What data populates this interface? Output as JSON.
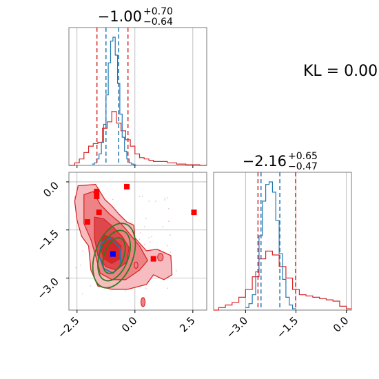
{
  "colors": {
    "red": "#d62728",
    "blue": "#1f77b4",
    "green": "#2a7d1f",
    "marker_red": "#ff0000",
    "marker_blue": "#0000ff",
    "grid": "#b0b0b0",
    "frame": "#000000"
  },
  "kl_text": "KL = 0.00",
  "chart_data": [
    {
      "type": "histogram",
      "panel": "top-left marginal",
      "title": {
        "main": "−1.00",
        "sup": "+0.70",
        "sub": "−0.64"
      },
      "xlim": [
        -2.85,
        3.1
      ],
      "series": [
        {
          "name": "",
          "color": "#d62728",
          "style": "step",
          "x": [
            -2.85,
            -2.6,
            -2.4,
            -2.2,
            -2.0,
            -1.8,
            -1.6,
            -1.4,
            -1.2,
            -1.0,
            -0.8,
            -0.6,
            -0.4,
            -0.2,
            0.0,
            0.2,
            0.4,
            0.6,
            0.8,
            1.0,
            1.2,
            1.4,
            1.6,
            1.8,
            2.0,
            2.2,
            2.4,
            2.6,
            2.8,
            3.1
          ],
          "counts": [
            0.0,
            0.02,
            0.05,
            0.1,
            0.15,
            0.17,
            0.18,
            0.29,
            0.34,
            0.42,
            0.33,
            0.27,
            0.2,
            0.15,
            0.09,
            0.06,
            0.05,
            0.04,
            0.03,
            0.03,
            0.03,
            0.02,
            0.02,
            0.01,
            0.01,
            0.005,
            0.005,
            0.005,
            0.0
          ]
        },
        {
          "name": "",
          "color": "#1f77b4",
          "style": "step",
          "x": [
            -1.85,
            -1.75,
            -1.65,
            -1.55,
            -1.45,
            -1.35,
            -1.25,
            -1.15,
            -1.05,
            -0.95,
            -0.85,
            -0.75,
            -0.65,
            -0.55,
            -0.45,
            -0.35,
            -0.25,
            -0.15,
            -0.05,
            0.05
          ],
          "counts": [
            0.01,
            0.02,
            0.05,
            0.09,
            0.18,
            0.32,
            0.55,
            0.8,
            0.97,
            1.0,
            0.86,
            0.64,
            0.4,
            0.22,
            0.11,
            0.05,
            0.02,
            0.01,
            0.005
          ]
        }
      ],
      "vlines": [
        {
          "x": -1.64,
          "color": "#d62728",
          "style": "dashed"
        },
        {
          "x": -0.3,
          "color": "#d62728",
          "style": "dashed"
        },
        {
          "x": -1.25,
          "color": "#1f77b4",
          "style": "dashed"
        },
        {
          "x": -0.7,
          "color": "#1f77b4",
          "style": "dashed"
        }
      ],
      "grid": true
    },
    {
      "type": "contour",
      "panel": "bottom-left joint",
      "xlim": [
        -2.85,
        3.1
      ],
      "ylim": [
        -4.0,
        0.3
      ],
      "xticks": [
        "−2.5",
        "0.0",
        "2.5"
      ],
      "yticks": [
        "0.0",
        "−1.5",
        "−3.0"
      ],
      "xtick_values": [
        -2.5,
        0.0,
        2.5
      ],
      "ytick_values": [
        0.0,
        -1.5,
        -3.0
      ],
      "red_contour_levels": [
        [
          [
            -2.45,
            -0.12
          ],
          [
            -1.7,
            -0.08
          ],
          [
            -1.3,
            -0.55
          ],
          [
            -1.0,
            -0.75
          ],
          [
            -0.7,
            -1.0
          ],
          [
            -0.35,
            -1.25
          ],
          [
            -0.05,
            -1.35
          ],
          [
            0.0,
            -1.75
          ],
          [
            0.5,
            -2.15
          ],
          [
            0.95,
            -2.1
          ],
          [
            1.55,
            -2.3
          ],
          [
            1.6,
            -2.9
          ],
          [
            1.25,
            -3.05
          ],
          [
            0.8,
            -2.9
          ],
          [
            0.5,
            -3.2
          ],
          [
            -0.3,
            -3.35
          ],
          [
            -1.0,
            -3.35
          ],
          [
            -1.6,
            -3.25
          ],
          [
            -1.9,
            -2.75
          ],
          [
            -2.0,
            -2.0
          ],
          [
            -2.3,
            -1.7
          ],
          [
            -2.5,
            -1.2
          ],
          [
            -2.6,
            -0.6
          ]
        ],
        [
          [
            -2.2,
            -0.4
          ],
          [
            -1.8,
            -0.3
          ],
          [
            -1.5,
            -0.7
          ],
          [
            -1.1,
            -1.0
          ],
          [
            -0.6,
            -1.3
          ],
          [
            -0.25,
            -1.6
          ],
          [
            0.2,
            -2.0
          ],
          [
            0.55,
            -2.45
          ],
          [
            0.2,
            -2.75
          ],
          [
            -0.4,
            -3.05
          ],
          [
            -1.0,
            -3.05
          ],
          [
            -1.5,
            -2.85
          ],
          [
            -1.7,
            -2.3
          ],
          [
            -1.9,
            -1.8
          ],
          [
            -2.2,
            -1.3
          ]
        ],
        [
          [
            -1.75,
            -1.1
          ],
          [
            -1.35,
            -1.15
          ],
          [
            -0.95,
            -1.4
          ],
          [
            -0.55,
            -1.7
          ],
          [
            -0.25,
            -2.05
          ],
          [
            -0.35,
            -2.5
          ],
          [
            -0.8,
            -2.75
          ],
          [
            -1.25,
            -2.65
          ],
          [
            -1.6,
            -2.3
          ],
          [
            -1.75,
            -1.75
          ]
        ],
        [
          [
            -1.35,
            -1.65
          ],
          [
            -0.95,
            -1.75
          ],
          [
            -0.6,
            -2.0
          ],
          [
            -0.65,
            -2.4
          ],
          [
            -1.0,
            -2.55
          ],
          [
            -1.35,
            -2.4
          ],
          [
            -1.5,
            -2.0
          ]
        ]
      ],
      "red_contour_fills": [
        "#f6bcbf",
        "#ee8387",
        "#e0474d",
        "#d62728"
      ],
      "blue_contour": [
        [
          -1.45,
          -1.9
        ],
        [
          -1.05,
          -1.75
        ],
        [
          -0.65,
          -2.05
        ],
        [
          -0.6,
          -2.6
        ],
        [
          -0.95,
          -2.85
        ],
        [
          -1.35,
          -2.7
        ],
        [
          -1.55,
          -2.3
        ]
      ],
      "green_ellipses": [
        {
          "cx": -0.9,
          "cy": -2.3,
          "rx": 0.42,
          "ry": 0.58,
          "angle_deg": 20
        },
        {
          "cx": -0.9,
          "cy": -2.3,
          "rx": 0.62,
          "ry": 0.82,
          "angle_deg": 20
        },
        {
          "cx": -0.9,
          "cy": -2.3,
          "rx": 0.82,
          "ry": 1.05,
          "angle_deg": 20
        }
      ],
      "red_markers": [
        {
          "x": -1.65,
          "y": -0.3
        },
        {
          "x": -1.65,
          "y": -0.45
        },
        {
          "x": -0.35,
          "y": -0.15
        },
        {
          "x": -1.55,
          "y": -0.95
        },
        {
          "x": -2.05,
          "y": -1.25
        },
        {
          "x": 2.55,
          "y": -0.95
        },
        {
          "x": 0.8,
          "y": -2.4
        }
      ],
      "blue_marker": {
        "x": -0.95,
        "y": -2.25
      },
      "grid": true
    },
    {
      "type": "histogram",
      "panel": "bottom-right marginal",
      "title": {
        "main": "−2.16",
        "sup": "+0.65",
        "sub": "−0.47"
      },
      "xlim": [
        -3.95,
        0.15
      ],
      "xticks": [
        "−3.0",
        "−1.5",
        "0.0"
      ],
      "xtick_values": [
        -3.0,
        -1.5,
        0.0
      ],
      "series": [
        {
          "name": "",
          "color": "#d62728",
          "style": "step",
          "x": [
            -3.95,
            -3.8,
            -3.6,
            -3.4,
            -3.2,
            -3.0,
            -2.8,
            -2.6,
            -2.4,
            -2.2,
            -2.0,
            -1.8,
            -1.6,
            -1.4,
            -1.2,
            -1.0,
            -0.8,
            -0.6,
            -0.4,
            -0.2,
            0.0,
            0.15
          ],
          "counts": [
            0.0,
            0.02,
            0.04,
            0.06,
            0.1,
            0.16,
            0.26,
            0.4,
            0.46,
            0.43,
            0.34,
            0.25,
            0.16,
            0.12,
            0.11,
            0.1,
            0.09,
            0.08,
            0.07,
            0.03,
            0.01
          ]
        },
        {
          "name": "",
          "color": "#1f77b4",
          "style": "step",
          "x": [
            -3.0,
            -2.9,
            -2.8,
            -2.7,
            -2.6,
            -2.5,
            -2.4,
            -2.3,
            -2.2,
            -2.1,
            -2.0,
            -1.9,
            -1.8,
            -1.7,
            -1.6,
            -1.5
          ],
          "counts": [
            0.02,
            0.05,
            0.12,
            0.3,
            0.58,
            0.85,
            0.98,
            1.0,
            0.92,
            0.7,
            0.44,
            0.24,
            0.1,
            0.04,
            0.01
          ]
        }
      ],
      "vlines": [
        {
          "x": -2.63,
          "color": "#d62728",
          "style": "dashed"
        },
        {
          "x": -1.51,
          "color": "#d62728",
          "style": "dashed"
        },
        {
          "x": -2.54,
          "color": "#1f77b4",
          "style": "dashed"
        },
        {
          "x": -1.98,
          "color": "#1f77b4",
          "style": "dashed"
        }
      ],
      "grid": true
    }
  ]
}
